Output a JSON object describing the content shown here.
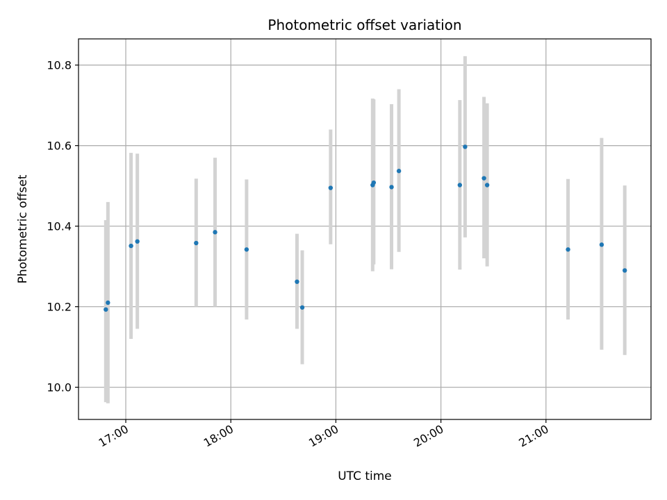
{
  "chart_data": {
    "type": "scatter",
    "title": "Photometric offset variation",
    "xlabel": "UTC time",
    "ylabel": "Photometric offset",
    "grid": true,
    "x_unit": "hours (UTC)",
    "xlim": [
      16.55,
      22.0
    ],
    "ylim": [
      9.92,
      10.865
    ],
    "x_ticks": [
      {
        "value": 17,
        "label": "17:00"
      },
      {
        "value": 18,
        "label": "18:00"
      },
      {
        "value": 19,
        "label": "19:00"
      },
      {
        "value": 20,
        "label": "20:00"
      },
      {
        "value": 21,
        "label": "21:00"
      }
    ],
    "y_ticks": [
      {
        "value": 10.0,
        "label": "10.0"
      },
      {
        "value": 10.2,
        "label": "10.2"
      },
      {
        "value": 10.4,
        "label": "10.4"
      },
      {
        "value": 10.6,
        "label": "10.6"
      },
      {
        "value": 10.8,
        "label": "10.8"
      }
    ],
    "colors": {
      "point": "#1f77b4",
      "errorbar": "#d3d3d3",
      "grid": "#b0b0b0",
      "axes": "#000000"
    },
    "points": [
      {
        "x": 16.81,
        "y": 10.193,
        "ylow": 9.963,
        "yhigh": 10.415
      },
      {
        "x": 16.83,
        "y": 10.21,
        "ylow": 9.96,
        "yhigh": 10.46
      },
      {
        "x": 17.05,
        "y": 10.351,
        "ylow": 10.12,
        "yhigh": 10.582
      },
      {
        "x": 17.11,
        "y": 10.362,
        "ylow": 10.145,
        "yhigh": 10.58
      },
      {
        "x": 17.67,
        "y": 10.358,
        "ylow": 10.2,
        "yhigh": 10.518
      },
      {
        "x": 17.85,
        "y": 10.385,
        "ylow": 10.2,
        "yhigh": 10.57
      },
      {
        "x": 18.15,
        "y": 10.342,
        "ylow": 10.168,
        "yhigh": 10.516
      },
      {
        "x": 18.63,
        "y": 10.262,
        "ylow": 10.145,
        "yhigh": 10.381
      },
      {
        "x": 18.68,
        "y": 10.198,
        "ylow": 10.057,
        "yhigh": 10.34
      },
      {
        "x": 18.95,
        "y": 10.495,
        "ylow": 10.355,
        "yhigh": 10.64
      },
      {
        "x": 19.35,
        "y": 10.502,
        "ylow": 10.288,
        "yhigh": 10.717
      },
      {
        "x": 19.36,
        "y": 10.508,
        "ylow": 10.305,
        "yhigh": 10.715
      },
      {
        "x": 19.53,
        "y": 10.497,
        "ylow": 10.293,
        "yhigh": 10.703
      },
      {
        "x": 19.6,
        "y": 10.537,
        "ylow": 10.336,
        "yhigh": 10.74
      },
      {
        "x": 20.18,
        "y": 10.502,
        "ylow": 10.292,
        "yhigh": 10.713
      },
      {
        "x": 20.23,
        "y": 10.597,
        "ylow": 10.372,
        "yhigh": 10.822
      },
      {
        "x": 20.41,
        "y": 10.519,
        "ylow": 10.32,
        "yhigh": 10.721
      },
      {
        "x": 20.44,
        "y": 10.502,
        "ylow": 10.3,
        "yhigh": 10.705
      },
      {
        "x": 21.21,
        "y": 10.342,
        "ylow": 10.168,
        "yhigh": 10.517
      },
      {
        "x": 21.53,
        "y": 10.354,
        "ylow": 10.093,
        "yhigh": 10.619
      },
      {
        "x": 21.75,
        "y": 10.29,
        "ylow": 10.08,
        "yhigh": 10.501
      }
    ]
  }
}
